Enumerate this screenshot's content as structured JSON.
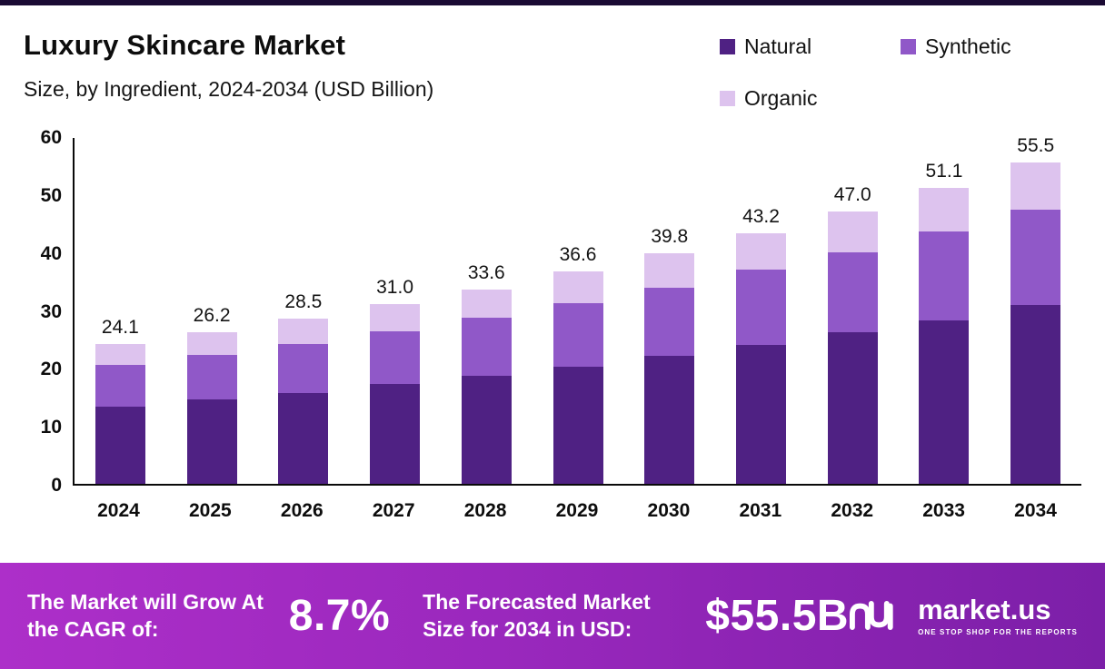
{
  "header": {
    "title": "Luxury Skincare Market",
    "subtitle": "Size, by Ingredient, 2024-2034 (USD Billion)"
  },
  "legend": [
    {
      "label": "Natural",
      "color": "#4f2183"
    },
    {
      "label": "Synthetic",
      "color": "#9058c8"
    },
    {
      "label": "Organic",
      "color": "#ddc3ee"
    }
  ],
  "chart_data": {
    "type": "bar",
    "stacked": true,
    "title": "Luxury Skincare Market",
    "subtitle": "Size, by Ingredient, 2024-2034 (USD Billion)",
    "unit": "USD Billion",
    "categories": [
      "2024",
      "2025",
      "2026",
      "2027",
      "2028",
      "2029",
      "2030",
      "2031",
      "2032",
      "2033",
      "2034"
    ],
    "series": [
      {
        "name": "Natural",
        "color": "#4f2183",
        "values": [
          13.3,
          14.5,
          15.7,
          17.2,
          18.7,
          20.2,
          22.1,
          23.9,
          26.1,
          28.2,
          30.8
        ]
      },
      {
        "name": "Synthetic",
        "color": "#9058c8",
        "values": [
          7.2,
          7.8,
          8.5,
          9.2,
          10.0,
          11.0,
          11.8,
          13.0,
          13.9,
          15.4,
          16.5
        ]
      },
      {
        "name": "Organic",
        "color": "#ddc3ee",
        "values": [
          3.6,
          3.9,
          4.3,
          4.6,
          4.9,
          5.4,
          5.9,
          6.3,
          7.0,
          7.5,
          8.2
        ]
      }
    ],
    "totals": [
      24.1,
      26.2,
      28.5,
      31.0,
      33.6,
      36.6,
      39.8,
      43.2,
      47.0,
      51.1,
      55.5
    ],
    "totals_labels": [
      "24.1",
      "26.2",
      "28.5",
      "31.0",
      "33.6",
      "36.6",
      "39.8",
      "43.2",
      "47.0",
      "51.1",
      "55.5"
    ],
    "ylim": [
      0,
      60
    ],
    "yticks": [
      0,
      10,
      20,
      30,
      40,
      50,
      60
    ],
    "grid": false,
    "legend_position": "top-right"
  },
  "banner": {
    "cagr_label": "The Market will Grow At the CAGR of:",
    "cagr_value": "8.7%",
    "forecast_label": "The Forecasted Market Size for 2034 in USD:",
    "forecast_value": "$55.5B",
    "brand_name": "market.us",
    "brand_tagline": "ONE STOP SHOP FOR THE REPORTS"
  }
}
